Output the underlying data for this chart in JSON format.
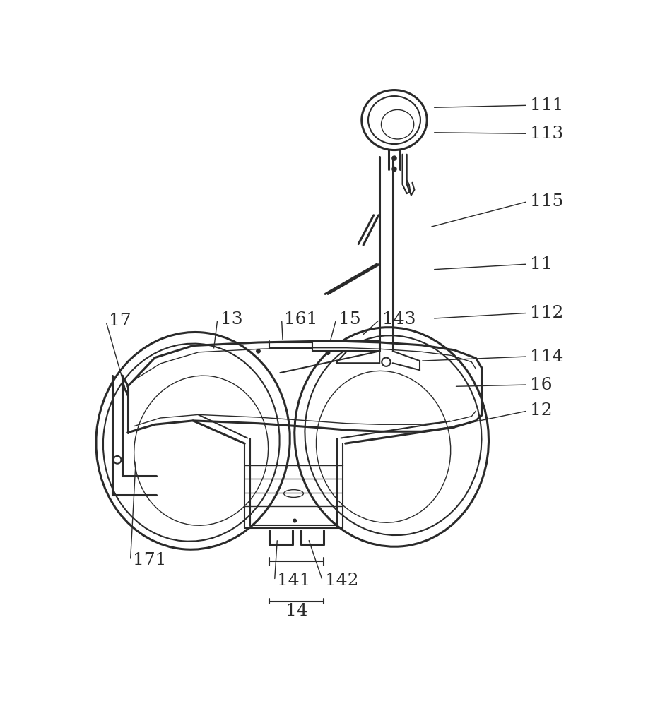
{
  "bg_color": "#ffffff",
  "line_color": "#2a2a2a",
  "lw_thick": 2.2,
  "lw_med": 1.5,
  "lw_thin": 1.0,
  "figsize": [
    9.34,
    10.0
  ],
  "dpi": 100
}
